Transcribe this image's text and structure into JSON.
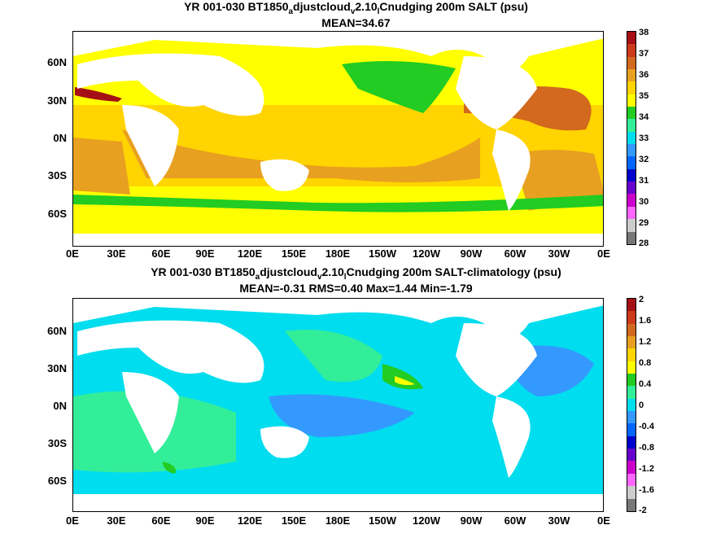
{
  "panel1": {
    "title_a": "YR 001-030 BT1850",
    "title_s1": "a",
    "title_b": "djustcloud",
    "title_s2": "v",
    "title_c": "2.10",
    "title_s3": "l",
    "title_d": "Cnudging 200m SALT (psu)",
    "stats": "MEAN=34.67",
    "colorbar": [
      "38",
      "37",
      "36",
      "35",
      "34",
      "33",
      "32",
      "31",
      "30",
      "29",
      "28"
    ],
    "colors": [
      "#a50f15",
      "#cb3a1a",
      "#d2691e",
      "#e8a020",
      "#ffd400",
      "#ffff00",
      "#22cc22",
      "#33ee99",
      "#00ddee",
      "#3399ff",
      "#0066ff",
      "#0000cc",
      "#6600cc",
      "#cc00cc",
      "#ff66ff",
      "#cccccc",
      "#777777"
    ]
  },
  "panel2": {
    "title_a": "YR 001-030 BT1850",
    "title_s1": "a",
    "title_b": "djustcloud",
    "title_s2": "v",
    "title_c": "2.10",
    "title_s3": "l",
    "title_d": "Cnudging 200m SALT-climatology (psu)",
    "stats": "MEAN=-0.31   RMS=0.40   Max=1.44   Min=-1.79",
    "colorbar": [
      "2",
      "1.6",
      "1.2",
      "0.8",
      "0.4",
      "0",
      "-0.4",
      "-0.8",
      "-1.2",
      "-1.6",
      "-2"
    ],
    "colors": [
      "#a50f15",
      "#cb3a1a",
      "#d2691e",
      "#e8a020",
      "#ffd400",
      "#ffff00",
      "#22cc22",
      "#33ee99",
      "#00ddee",
      "#3399ff",
      "#0066ff",
      "#0000cc",
      "#6600cc",
      "#cc00cc",
      "#ff66ff",
      "#cccccc",
      "#777777"
    ]
  },
  "axes": {
    "lat_labels": [
      "60N",
      "30N",
      "0N",
      "30S",
      "60S"
    ],
    "lon_labels": [
      "0E",
      "30E",
      "60E",
      "90E",
      "120E",
      "150E",
      "180E",
      "150W",
      "120W",
      "90W",
      "60W",
      "30W",
      "0E"
    ]
  }
}
